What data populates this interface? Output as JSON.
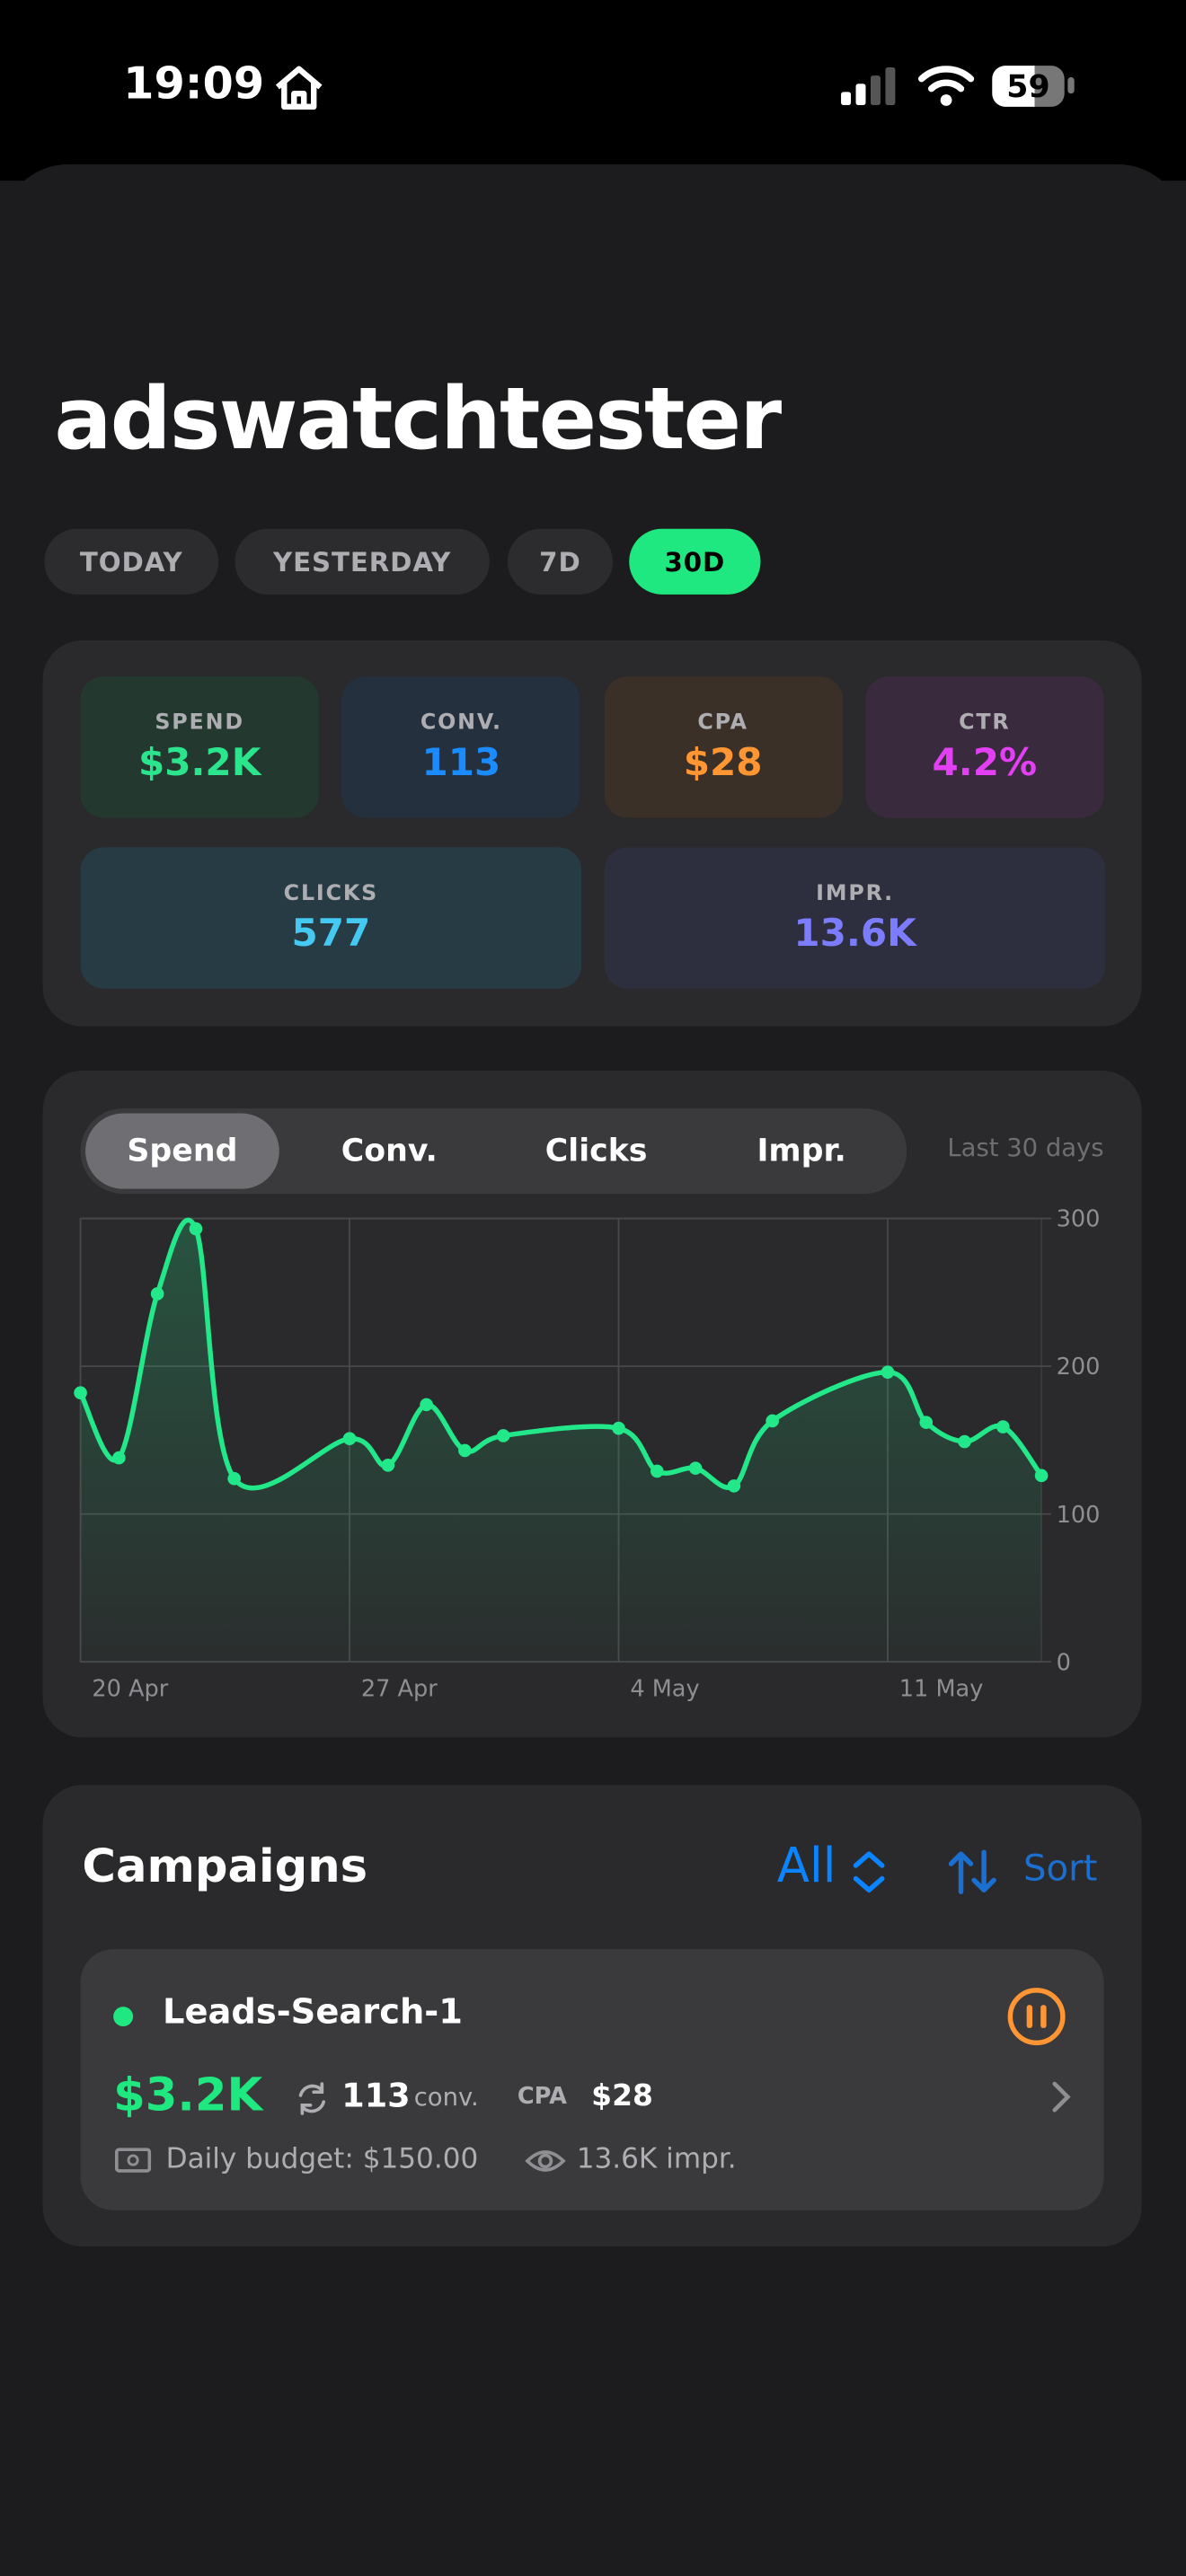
{
  "status_bar": {
    "time": "19:09",
    "battery": "59"
  },
  "title": "adswatchtester",
  "range_tabs": {
    "items": [
      "TODAY",
      "YESTERDAY",
      "7D",
      "30D"
    ],
    "selected": 3
  },
  "metrics": [
    {
      "label": "SPEND",
      "value": "$3.2K",
      "color": "#2be58c"
    },
    {
      "label": "CONV.",
      "value": "113",
      "color": "#1a8cff"
    },
    {
      "label": "CPA",
      "value": "$28",
      "color": "#ff9533"
    },
    {
      "label": "CTR",
      "value": "4.2%",
      "color": "#e33ff5"
    },
    {
      "label": "CLICKS",
      "value": "577",
      "color": "#45c8f2"
    },
    {
      "label": "IMPR.",
      "value": "13.6K",
      "color": "#7c7cff"
    }
  ],
  "chart_tabs": {
    "items": [
      "Spend",
      "Conv.",
      "Clicks",
      "Impr."
    ],
    "selected": 0,
    "period": "Last 30 days"
  },
  "chart_data": {
    "type": "line",
    "x": [
      "20 Apr",
      "21 Apr",
      "22 Apr",
      "23 Apr",
      "24 Apr",
      "27 Apr",
      "28 Apr",
      "29 Apr",
      "30 Apr",
      "1 May",
      "4 May",
      "5 May",
      "6 May",
      "7 May",
      "8 May",
      "11 May",
      "12 May",
      "13 May",
      "14 May",
      "15 May"
    ],
    "series": [
      {
        "name": "Spend",
        "color": "#22e88a",
        "values": [
          182,
          138,
          249,
          293,
          124,
          151,
          133,
          174,
          143,
          153,
          158,
          129,
          131,
          119,
          163,
          196,
          162,
          149,
          159,
          126
        ]
      }
    ],
    "xlim": [
      "20 Apr",
      "15 May"
    ],
    "xticks": [
      "20 Apr",
      "27 Apr",
      "4 May",
      "11 May"
    ],
    "ylim": [
      0,
      300
    ],
    "yticks": [
      0,
      100,
      200,
      300
    ],
    "grid": true
  },
  "campaigns": {
    "title": "Campaigns",
    "filter": "All",
    "sort": "Sort",
    "items": [
      {
        "name": "Leads-Search-1",
        "spend": "$3.2K",
        "conversions": "113",
        "conv_unit": "conv.",
        "cpa_label": "CPA",
        "cpa": "$28",
        "budget": "Daily budget: $150.00",
        "impressions": "13.6K impr."
      }
    ]
  }
}
